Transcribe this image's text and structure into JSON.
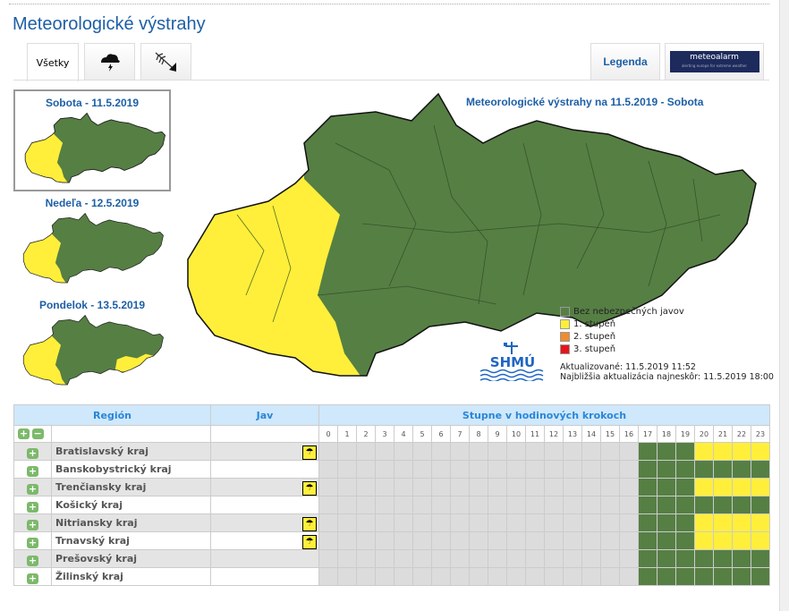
{
  "page_title": "Meteorologické výstrahy",
  "tabs": [
    {
      "label": "Všetky",
      "active": true
    },
    {
      "icon": "thunderstorm-icon"
    },
    {
      "icon": "wind-icon"
    }
  ],
  "legend_tab": "Legenda",
  "meteoalarm": {
    "brand": "meteoalarm",
    "tagline": "alerting europe for extreme weather"
  },
  "days": [
    {
      "label": "Sobota - 11.5.2019",
      "selected": true
    },
    {
      "label": "Nedeľa - 12.5.2019"
    },
    {
      "label": "Pondelok - 13.5.2019"
    }
  ],
  "map": {
    "title": "Meteorologické výstrahy na 11.5.2019 - Sobota"
  },
  "legend": [
    {
      "label": "Bez nebezpečných javov",
      "color": "#567f44"
    },
    {
      "label": "1. stupeň",
      "color": "#ffef3a"
    },
    {
      "label": "2. stupeň",
      "color": "#f08c30"
    },
    {
      "label": "3. stupeň",
      "color": "#e8141c"
    }
  ],
  "updated": "Aktualizované: 11.5.2019 11:52",
  "next_update": "Najbližšia aktualizácia najneskôr: 11.5.2019 18:00",
  "logo_text": "SHMÚ",
  "table": {
    "headers": {
      "region": "Región",
      "jav": "Jav",
      "hours": "Stupne v hodinových krokoch"
    },
    "hour_labels": [
      "0",
      "1",
      "2",
      "3",
      "4",
      "5",
      "6",
      "7",
      "8",
      "9",
      "10",
      "11",
      "12",
      "13",
      "14",
      "15",
      "16",
      "17",
      "18",
      "19",
      "20",
      "21",
      "22",
      "23"
    ],
    "rows": [
      {
        "name": "Bratislavský kraj",
        "warning_icon": "umbrella-rain-icon",
        "levels": "nnnnnnnnnnnnnnnnngggyyyy"
      },
      {
        "name": "Banskobystrický kraj",
        "levels": "nnnnnnnnnnnnnnnnnggggggg"
      },
      {
        "name": "Trenčiansky kraj",
        "warning_icon": "umbrella-rain-icon",
        "levels": "nnnnnnnnnnnnnnnnngggyyyy"
      },
      {
        "name": "Košický kraj",
        "levels": "nnnnnnnnnnnnnnnnnggggggg"
      },
      {
        "name": "Nitriansky kraj",
        "warning_icon": "umbrella-rain-icon",
        "levels": "nnnnnnnnnnnnnnnnngggyyyy"
      },
      {
        "name": "Trnavský kraj",
        "warning_icon": "umbrella-rain-icon",
        "levels": "nnnnnnnnnnnnnnnnngggyyyy"
      },
      {
        "name": "Prešovský kraj",
        "levels": "nnnnnnnnnnnnnnnnnggggggg"
      },
      {
        "name": "Žilinský kraj",
        "levels": "nnnnnnnnnnnnnnnnnggggggg"
      }
    ]
  }
}
